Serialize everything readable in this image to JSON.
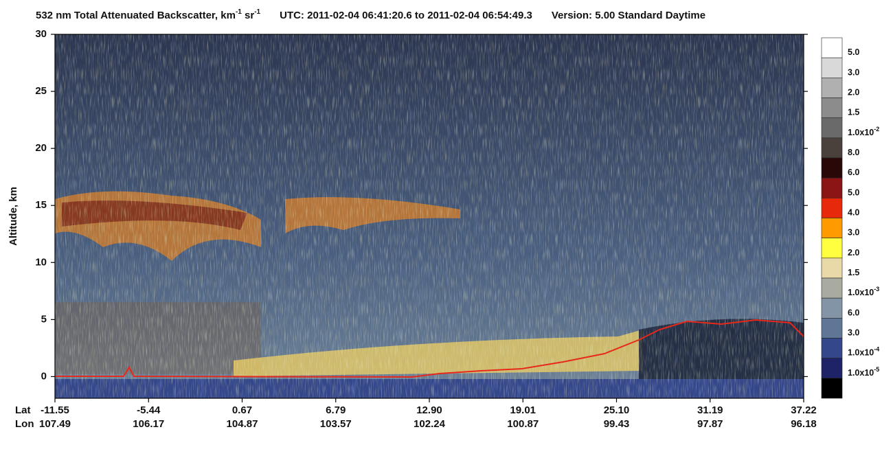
{
  "chart_data": {
    "type": "heatmap",
    "title": {
      "main": "532 nm Total Attenuated Backscatter, km",
      "exp1": "-1",
      "mid": " sr",
      "exp2": "-1",
      "utc": "UTC:  2011-02-04 06:41:20.6  to  2011-02-04 06:54:49.3",
      "version": "Version: 5.00  Standard  Daytime"
    },
    "ylabel": "Altitude, km",
    "ylim": [
      -1.9,
      30
    ],
    "yticks": [
      0,
      5,
      10,
      15,
      20,
      25,
      30
    ],
    "lat_label": "Lat",
    "lon_label": "Lon",
    "lat": [
      "-11.55",
      "-5.44",
      "0.67",
      "6.79",
      "12.90",
      "19.01",
      "25.10",
      "31.19",
      "37.22"
    ],
    "lon": [
      "107.49",
      "106.17",
      "104.87",
      "103.57",
      "102.24",
      "100.87",
      "99.43",
      "97.87",
      "96.18"
    ],
    "colorbar": {
      "colors": [
        "#ffffff",
        "#d9d9d9",
        "#b0b0b0",
        "#8c8c8c",
        "#6a6a6a",
        "#4a403c",
        "#2a0808",
        "#8b1414",
        "#e8280a",
        "#ff9a00",
        "#ffff40",
        "#e9d9a9",
        "#a9aaa0",
        "#8394a6",
        "#5f7696",
        "#34478a",
        "#1e2266",
        "#000000"
      ],
      "labels": [
        {
          "base": "5.0"
        },
        {
          "base": "3.0"
        },
        {
          "base": "2.0"
        },
        {
          "base": "1.5"
        },
        {
          "base": "1.0x10",
          "exp": "-2"
        },
        {
          "base": "8.0"
        },
        {
          "base": "6.0"
        },
        {
          "base": "5.0"
        },
        {
          "base": "4.0"
        },
        {
          "base": "3.0"
        },
        {
          "base": "2.0"
        },
        {
          "base": "1.5"
        },
        {
          "base": "1.0x10",
          "exp": "-3"
        },
        {
          "base": "6.0"
        },
        {
          "base": "3.0"
        },
        {
          "base": "1.0x10",
          "exp": "-4"
        },
        {
          "base": "1.0x10",
          "exp": "-5"
        }
      ]
    }
  }
}
